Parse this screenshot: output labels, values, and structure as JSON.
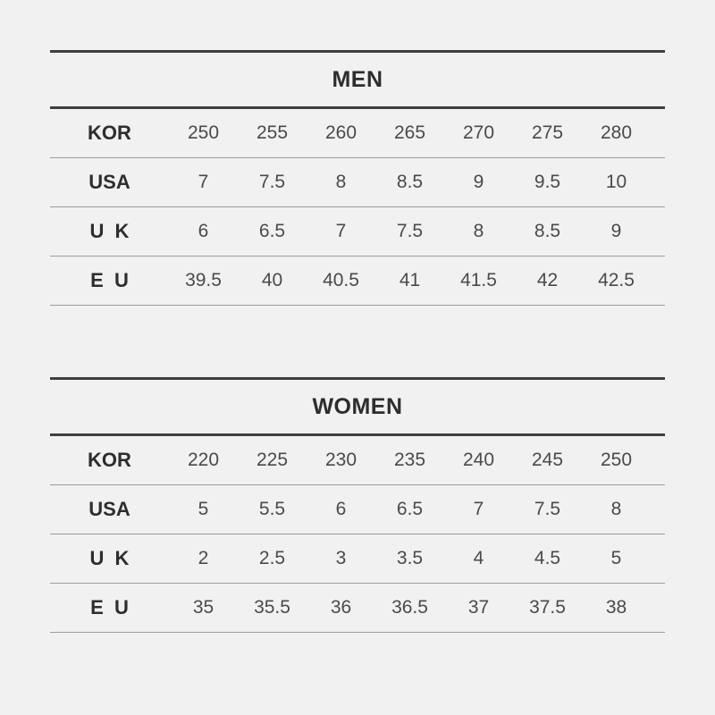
{
  "page": {
    "background_color": "#f1f1f1",
    "rule_thick_color": "#3f3f3f",
    "rule_thin_color": "#9d9d9d",
    "title_text_color": "#2d2d2d",
    "value_text_color": "#4a4a4a"
  },
  "chart_data": [
    {
      "type": "table",
      "title": "MEN",
      "row_header_column": [
        "KOR",
        "USA",
        "U K",
        "E U"
      ],
      "rows": [
        {
          "label": "KOR",
          "values": [
            "250",
            "255",
            "260",
            "265",
            "270",
            "275",
            "280"
          ]
        },
        {
          "label": "USA",
          "values": [
            "7",
            "7.5",
            "8",
            "8.5",
            "9",
            "9.5",
            "10"
          ]
        },
        {
          "label": "U K",
          "values": [
            "6",
            "6.5",
            "7",
            "7.5",
            "8",
            "8.5",
            "9"
          ]
        },
        {
          "label": "E U",
          "values": [
            "39.5",
            "40",
            "40.5",
            "41",
            "41.5",
            "42",
            "42.5"
          ]
        }
      ]
    },
    {
      "type": "table",
      "title": "WOMEN",
      "row_header_column": [
        "KOR",
        "USA",
        "U K",
        "E U"
      ],
      "rows": [
        {
          "label": "KOR",
          "values": [
            "220",
            "225",
            "230",
            "235",
            "240",
            "245",
            "250"
          ]
        },
        {
          "label": "USA",
          "values": [
            "5",
            "5.5",
            "6",
            "6.5",
            "7",
            "7.5",
            "8"
          ]
        },
        {
          "label": "U K",
          "values": [
            "2",
            "2.5",
            "3",
            "3.5",
            "4",
            "4.5",
            "5"
          ]
        },
        {
          "label": "E U",
          "values": [
            "35",
            "35.5",
            "36",
            "36.5",
            "37",
            "37.5",
            "38"
          ]
        }
      ]
    }
  ]
}
